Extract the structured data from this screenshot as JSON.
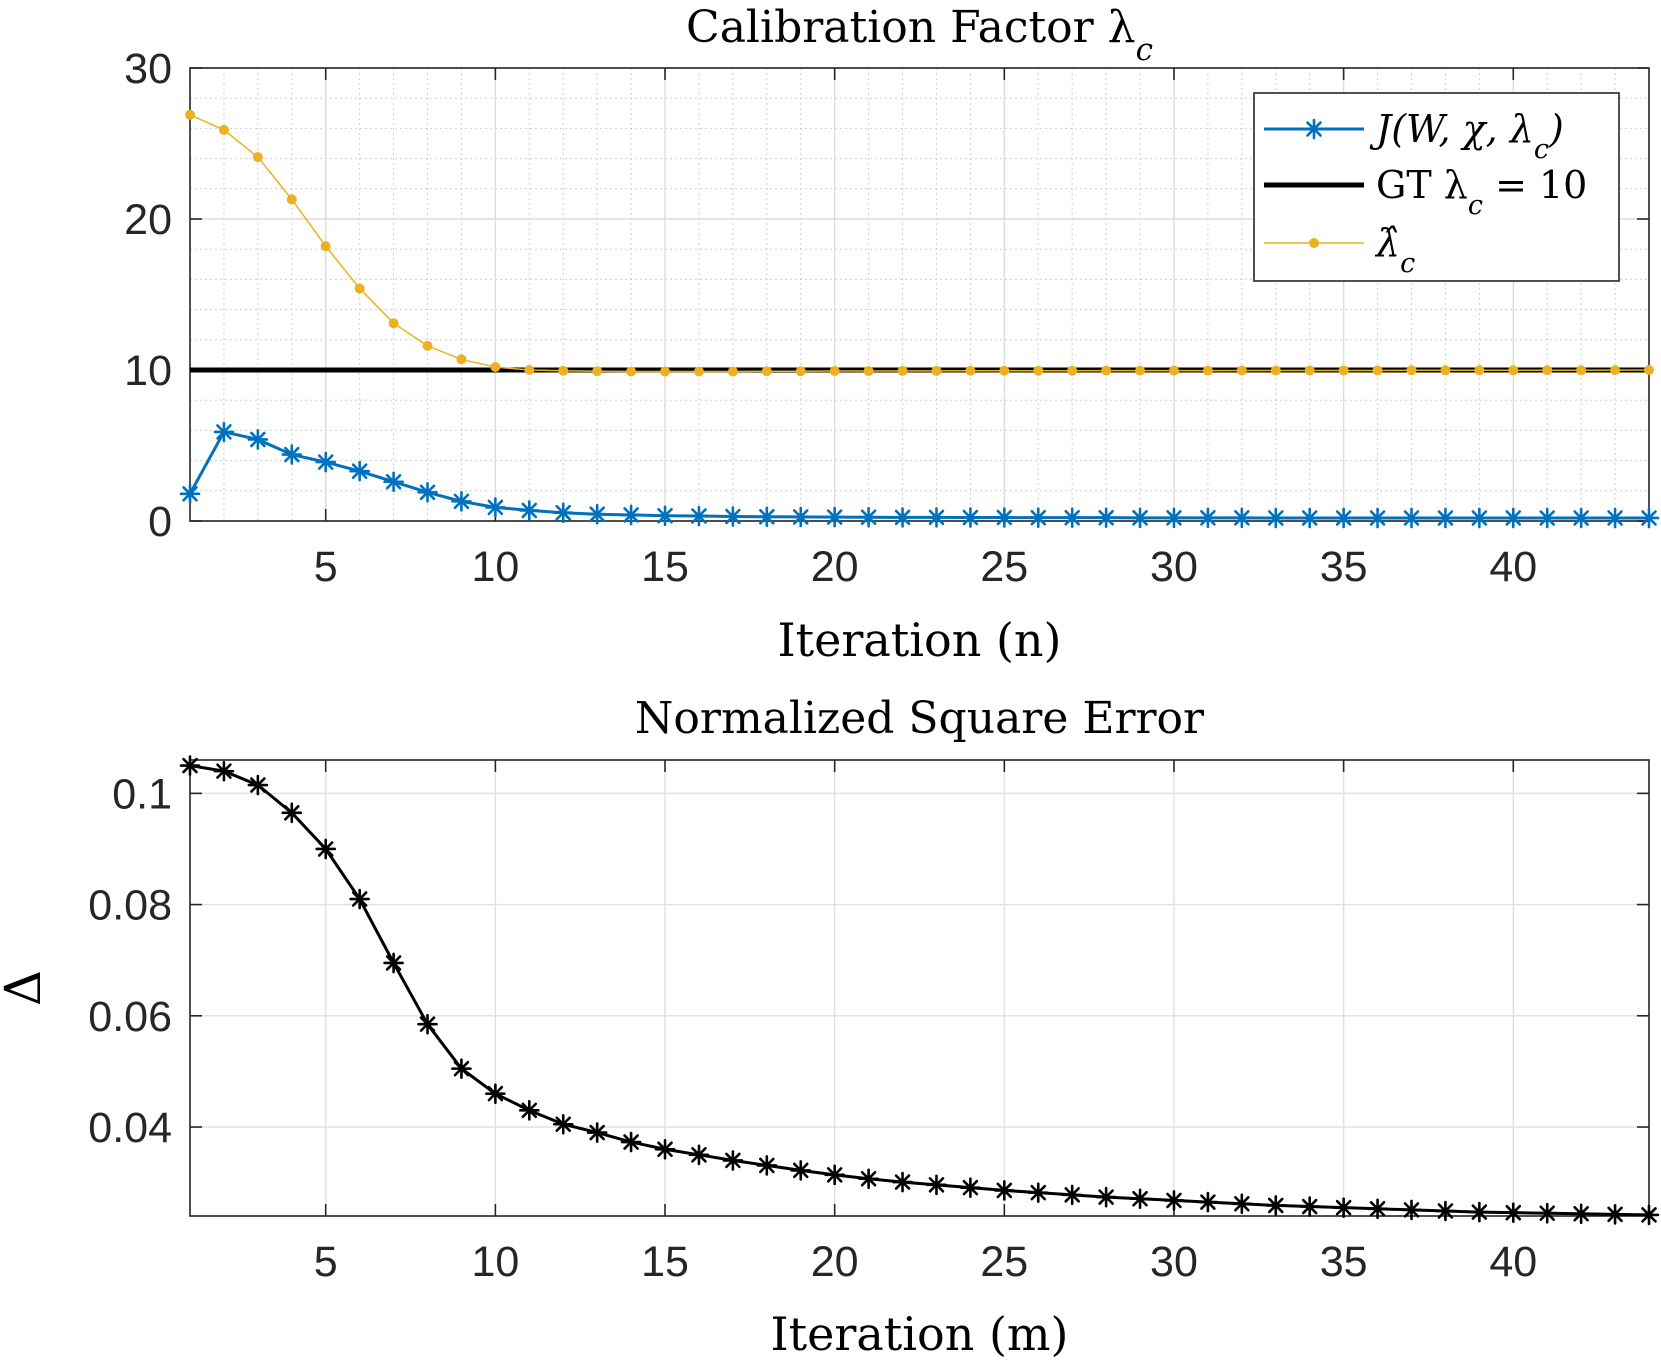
{
  "chart_data": [
    {
      "type": "line",
      "title": "Calibration Factor λ",
      "title_subscript": "c",
      "xlabel": "Iteration (n)",
      "ylabel": "",
      "xlim": [
        1,
        44
      ],
      "ylim": [
        0,
        30
      ],
      "xticks": [
        5,
        10,
        15,
        20,
        25,
        30,
        35,
        40
      ],
      "yticks": [
        0,
        10,
        20,
        30
      ],
      "grid": "major+minor",
      "legend_location": "top-right",
      "x": [
        1,
        2,
        3,
        4,
        5,
        6,
        7,
        8,
        9,
        10,
        11,
        12,
        13,
        14,
        15,
        16,
        17,
        18,
        19,
        20,
        21,
        22,
        23,
        24,
        25,
        26,
        27,
        28,
        29,
        30,
        31,
        32,
        33,
        34,
        35,
        36,
        37,
        38,
        39,
        40,
        41,
        42,
        43,
        44
      ],
      "series": [
        {
          "name": "J(W, χ, λ",
          "name_subscript": "c",
          "name_suffix": ")",
          "color": "#0072BD",
          "marker": "asterisk",
          "values": [
            1.8,
            5.9,
            5.4,
            4.4,
            3.9,
            3.3,
            2.6,
            1.9,
            1.3,
            0.9,
            0.7,
            0.55,
            0.45,
            0.4,
            0.35,
            0.33,
            0.3,
            0.28,
            0.27,
            0.26,
            0.25,
            0.24,
            0.24,
            0.23,
            0.23,
            0.22,
            0.22,
            0.22,
            0.21,
            0.21,
            0.21,
            0.21,
            0.2,
            0.2,
            0.2,
            0.2,
            0.2,
            0.2,
            0.2,
            0.2,
            0.2,
            0.2,
            0.2,
            0.2
          ]
        },
        {
          "name": "GT λ",
          "name_subscript": "c",
          "name_suffix": " = 10",
          "color": "#000000",
          "marker": "none",
          "values": [
            10,
            10,
            10,
            10,
            10,
            10,
            10,
            10,
            10,
            10,
            10,
            10,
            10,
            10,
            10,
            10,
            10,
            10,
            10,
            10,
            10,
            10,
            10,
            10,
            10,
            10,
            10,
            10,
            10,
            10,
            10,
            10,
            10,
            10,
            10,
            10,
            10,
            10,
            10,
            10,
            10,
            10,
            10,
            10
          ]
        },
        {
          "name": "λ̂",
          "name_subscript": "c",
          "name_suffix": "",
          "color": "#EDB120",
          "marker": "dot",
          "values": [
            26.9,
            25.9,
            24.1,
            21.3,
            18.2,
            15.4,
            13.1,
            11.6,
            10.7,
            10.2,
            10.0,
            9.95,
            9.92,
            9.9,
            9.9,
            9.9,
            9.9,
            9.92,
            9.92,
            9.93,
            9.93,
            9.94,
            9.94,
            9.95,
            9.95,
            9.95,
            9.95,
            9.96,
            9.96,
            9.96,
            9.96,
            9.97,
            9.97,
            9.97,
            9.97,
            9.97,
            9.98,
            9.98,
            9.98,
            9.98,
            9.98,
            9.98,
            9.99,
            10.0
          ]
        }
      ]
    },
    {
      "type": "line",
      "title": "Normalized Square Error",
      "xlabel": "Iteration (m)",
      "ylabel": "Δ",
      "xlim": [
        1,
        44
      ],
      "ylim": [
        0.024,
        0.106
      ],
      "xticks": [
        5,
        10,
        15,
        20,
        25,
        30,
        35,
        40
      ],
      "yticks": [
        0.04,
        0.06,
        0.08,
        0.1
      ],
      "ytick_labels": [
        "0.04",
        "0.06",
        "0.08",
        "0.1"
      ],
      "grid": "major",
      "x": [
        1,
        2,
        3,
        4,
        5,
        6,
        7,
        8,
        9,
        10,
        11,
        12,
        13,
        14,
        15,
        16,
        17,
        18,
        19,
        20,
        21,
        22,
        23,
        24,
        25,
        26,
        27,
        28,
        29,
        30,
        31,
        32,
        33,
        34,
        35,
        36,
        37,
        38,
        39,
        40,
        41,
        42,
        43,
        44
      ],
      "series": [
        {
          "name": "Δ",
          "color": "#000000",
          "marker": "asterisk",
          "values": [
            0.105,
            0.104,
            0.1015,
            0.0965,
            0.09,
            0.081,
            0.0695,
            0.0585,
            0.0505,
            0.046,
            0.043,
            0.0405,
            0.039,
            0.0373,
            0.036,
            0.035,
            0.034,
            0.0331,
            0.0322,
            0.0314,
            0.0307,
            0.0301,
            0.0296,
            0.0291,
            0.0286,
            0.0282,
            0.0278,
            0.0274,
            0.0271,
            0.0268,
            0.0265,
            0.0262,
            0.0259,
            0.0257,
            0.0255,
            0.0253,
            0.0251,
            0.0249,
            0.0247,
            0.0246,
            0.0245,
            0.0244,
            0.0243,
            0.0242
          ]
        }
      ]
    }
  ]
}
